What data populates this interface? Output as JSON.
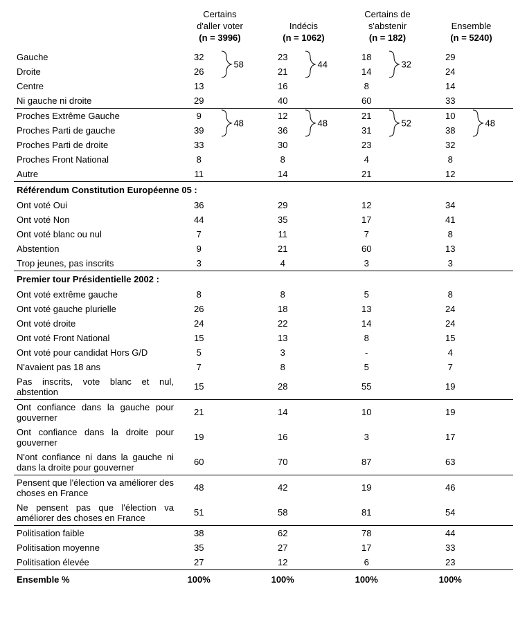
{
  "columns": [
    {
      "title1": "Certains",
      "title2": "d'aller voter",
      "n": "(n = 3996)"
    },
    {
      "title1": "Indécis",
      "title2": "",
      "n": "(n = 1062)"
    },
    {
      "title1": "Certains de",
      "title2": "s'abstenir",
      "n": "(n = 182)"
    },
    {
      "title1": "Ensemble",
      "title2": "",
      "n": "(n = 5240)"
    }
  ],
  "blocks": [
    {
      "type": "bracket-group",
      "top_divider": false,
      "rows": [
        {
          "label": "Gauche",
          "vals": [
            "32",
            "23",
            "18",
            "29"
          ]
        },
        {
          "label": "Droite",
          "vals": [
            "26",
            "21",
            "14",
            "24"
          ]
        }
      ],
      "sums": [
        "58",
        "44",
        "32",
        ""
      ]
    },
    {
      "type": "plain",
      "rows": [
        {
          "label": "Centre",
          "vals": [
            "13",
            "16",
            "8",
            "14"
          ]
        },
        {
          "label": "Ni gauche ni droite",
          "vals": [
            "29",
            "40",
            "60",
            "33"
          ]
        }
      ]
    },
    {
      "type": "bracket-group",
      "top_divider": true,
      "rows": [
        {
          "label": "Proches Extrême Gauche",
          "vals": [
            "9",
            "12",
            "21",
            "10"
          ]
        },
        {
          "label": "Proches Parti de gauche",
          "vals": [
            "39",
            "36",
            "31",
            "38"
          ]
        }
      ],
      "sums": [
        "48",
        "48",
        "52",
        "48"
      ]
    },
    {
      "type": "plain",
      "rows": [
        {
          "label": "Proches Parti de droite",
          "vals": [
            "33",
            "30",
            "23",
            "32"
          ]
        },
        {
          "label": "Proches Front National",
          "vals": [
            "8",
            "8",
            "4",
            "8"
          ]
        },
        {
          "label": "Autre",
          "vals": [
            "11",
            "14",
            "21",
            "12"
          ]
        }
      ]
    },
    {
      "type": "section",
      "header": "Référendum Constitution Européenne 05 :",
      "rows": [
        {
          "label": "Ont voté Oui",
          "vals": [
            "36",
            "29",
            "12",
            "34"
          ]
        },
        {
          "label": "Ont voté Non",
          "vals": [
            "44",
            "35",
            "17",
            "41"
          ]
        },
        {
          "label": "Ont voté blanc ou nul",
          "vals": [
            "7",
            "11",
            "7",
            "8"
          ]
        },
        {
          "label": "Abstention",
          "vals": [
            "9",
            "21",
            "60",
            "13"
          ]
        },
        {
          "label": "Trop jeunes, pas inscrits",
          "vals": [
            "3",
            "4",
            "3",
            "3"
          ]
        }
      ]
    },
    {
      "type": "section",
      "header": "Premier tour Présidentielle 2002 :",
      "rows": [
        {
          "label": "Ont voté extrême gauche",
          "vals": [
            "8",
            "8",
            "5",
            "8"
          ]
        },
        {
          "label": "Ont voté gauche plurielle",
          "vals": [
            "26",
            "18",
            "13",
            "24"
          ]
        },
        {
          "label": "Ont voté droite",
          "vals": [
            "24",
            "22",
            "14",
            "24"
          ]
        },
        {
          "label": "Ont voté Front National",
          "vals": [
            "15",
            "13",
            "8",
            "15"
          ]
        },
        {
          "label": "Ont voté pour candidat Hors G/D",
          "vals": [
            "5",
            "3",
            "-",
            "4"
          ]
        },
        {
          "label": "N'avaient pas 18 ans",
          "vals": [
            "7",
            "8",
            "5",
            "7"
          ]
        },
        {
          "label": "Pas inscrits, vote blanc et nul, abstention",
          "justify": true,
          "vals": [
            "15",
            "28",
            "55",
            "19"
          ]
        }
      ]
    },
    {
      "type": "divider-plain",
      "rows": [
        {
          "label": "Ont confiance dans la gauche pour gouverner",
          "justify": true,
          "vals": [
            "21",
            "14",
            "10",
            "19"
          ]
        },
        {
          "label": "Ont confiance dans la droite pour gouverner",
          "justify": true,
          "vals": [
            "19",
            "16",
            "3",
            "17"
          ]
        },
        {
          "label": "N'ont confiance ni dans la gauche ni dans la droite pour gouverner",
          "justify": true,
          "vals": [
            "60",
            "70",
            "87",
            "63"
          ]
        }
      ]
    },
    {
      "type": "divider-plain",
      "rows": [
        {
          "label": "Pensent que l'élection va améliorer des choses en France",
          "justify": true,
          "vals": [
            "48",
            "42",
            "19",
            "46"
          ]
        },
        {
          "label": "Ne pensent pas que l'élection va améliorer des choses en France",
          "justify": true,
          "vals": [
            "51",
            "58",
            "81",
            "54"
          ]
        }
      ]
    },
    {
      "type": "divider-plain",
      "rows": [
        {
          "label": "Politisation faible",
          "vals": [
            "38",
            "62",
            "78",
            "44"
          ]
        },
        {
          "label": "Politisation moyenne",
          "vals": [
            "35",
            "27",
            "17",
            "33"
          ]
        },
        {
          "label": "Politisation élevée",
          "vals": [
            "27",
            "12",
            "6",
            "23"
          ]
        }
      ]
    }
  ],
  "total": {
    "label": "Ensemble %",
    "vals": [
      "100%",
      "100%",
      "100%",
      "100%"
    ]
  },
  "style": {
    "brace_color": "#000000"
  }
}
